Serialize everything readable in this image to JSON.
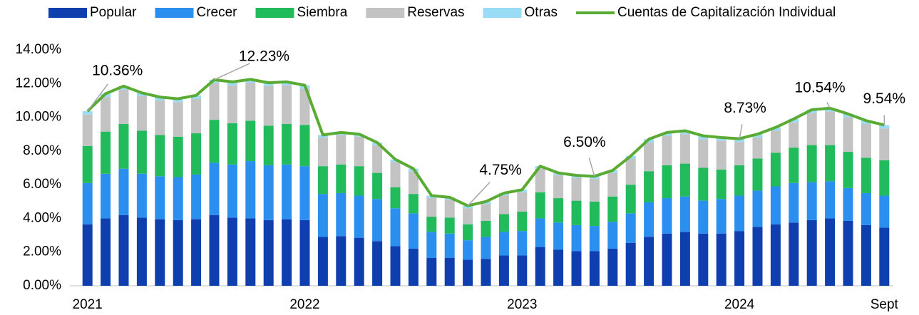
{
  "chart_data": {
    "type": "bar",
    "stacked": true,
    "categories": [
      "2021",
      null,
      null,
      null,
      null,
      null,
      null,
      null,
      null,
      null,
      null,
      null,
      "2022",
      null,
      null,
      null,
      null,
      null,
      null,
      null,
      null,
      null,
      null,
      null,
      "2023",
      null,
      null,
      null,
      null,
      null,
      null,
      null,
      null,
      null,
      null,
      null,
      "2024",
      null,
      null,
      null,
      null,
      null,
      null,
      null,
      "Sept"
    ],
    "ylim": [
      0,
      14
    ],
    "yticks": [
      {
        "value": 0,
        "label": "0.00%"
      },
      {
        "value": 2,
        "label": "2.00%"
      },
      {
        "value": 4,
        "label": "4.00%"
      },
      {
        "value": 6,
        "label": "6.00%"
      },
      {
        "value": 8,
        "label": "8.00%"
      },
      {
        "value": 10,
        "label": "10.00%"
      },
      {
        "value": 12,
        "label": "12.00%"
      },
      {
        "value": 14,
        "label": "14.00%"
      }
    ],
    "grid": false,
    "legend": "top",
    "series": [
      {
        "name": "Popular",
        "color": "#0f3fae",
        "values": [
          3.65,
          4.0,
          4.2,
          4.05,
          3.95,
          3.9,
          3.95,
          4.2,
          4.05,
          4.0,
          3.9,
          3.95,
          3.9,
          2.9,
          2.95,
          2.85,
          2.65,
          2.35,
          2.2,
          1.65,
          1.65,
          1.55,
          1.6,
          1.8,
          1.8,
          2.3,
          2.15,
          2.05,
          2.05,
          2.2,
          2.55,
          2.9,
          3.1,
          3.2,
          3.1,
          3.1,
          3.25,
          3.5,
          3.65,
          3.75,
          3.9,
          4.0,
          3.85,
          3.6,
          3.45
        ]
      },
      {
        "name": "Crecer",
        "color": "#2b8ff0",
        "values": [
          2.45,
          2.65,
          2.75,
          2.6,
          2.55,
          2.55,
          2.65,
          3.1,
          3.15,
          3.4,
          3.25,
          3.25,
          3.2,
          2.55,
          2.55,
          2.5,
          2.5,
          2.25,
          2.1,
          1.55,
          1.45,
          1.15,
          1.3,
          1.4,
          1.45,
          1.7,
          1.6,
          1.55,
          1.5,
          1.6,
          1.75,
          2.05,
          2.1,
          2.1,
          1.95,
          2.05,
          2.1,
          2.15,
          2.25,
          2.35,
          2.25,
          2.2,
          1.95,
          1.9,
          1.9
        ]
      },
      {
        "name": "Siembra",
        "color": "#22bb5c",
        "values": [
          2.2,
          2.5,
          2.65,
          2.55,
          2.45,
          2.4,
          2.45,
          2.55,
          2.45,
          2.4,
          2.35,
          2.4,
          2.45,
          1.65,
          1.7,
          1.75,
          1.55,
          1.25,
          1.15,
          0.9,
          0.95,
          0.95,
          0.95,
          1.05,
          1.15,
          1.55,
          1.45,
          1.45,
          1.45,
          1.5,
          1.7,
          1.85,
          1.95,
          1.95,
          1.95,
          1.75,
          1.8,
          1.9,
          2.0,
          2.1,
          2.2,
          2.15,
          2.15,
          2.1,
          2.1
        ]
      },
      {
        "name": "Reservas",
        "color": "#c3c3c3",
        "values": [
          1.86,
          2.05,
          2.05,
          2.05,
          2.05,
          2.05,
          2.05,
          2.18,
          2.25,
          2.25,
          2.35,
          2.3,
          2.15,
          1.7,
          1.75,
          1.75,
          1.65,
          1.5,
          1.35,
          1.1,
          1.05,
          0.95,
          1.0,
          1.1,
          1.15,
          1.4,
          1.35,
          1.35,
          1.35,
          1.4,
          1.55,
          1.7,
          1.75,
          1.75,
          1.7,
          1.7,
          1.38,
          1.25,
          1.3,
          1.5,
          1.9,
          1.99,
          2.05,
          2.0,
          1.89
        ]
      },
      {
        "name": "Otras",
        "color": "#9adcf6",
        "values": [
          0.2,
          0.2,
          0.2,
          0.2,
          0.2,
          0.2,
          0.2,
          0.2,
          0.2,
          0.2,
          0.2,
          0.2,
          0.2,
          0.15,
          0.15,
          0.15,
          0.15,
          0.15,
          0.15,
          0.15,
          0.15,
          0.15,
          0.15,
          0.15,
          0.15,
          0.15,
          0.15,
          0.15,
          0.15,
          0.15,
          0.15,
          0.2,
          0.2,
          0.2,
          0.2,
          0.2,
          0.2,
          0.2,
          0.2,
          0.2,
          0.2,
          0.2,
          0.2,
          0.2,
          0.2
        ]
      },
      {
        "name": "Cuentas de Capitalización Individual",
        "color": "#5aab33",
        "type": "line",
        "values": [
          10.36,
          11.4,
          11.85,
          11.45,
          11.2,
          11.1,
          11.3,
          12.23,
          12.1,
          12.25,
          12.05,
          12.1,
          11.9,
          8.95,
          9.1,
          9.0,
          8.5,
          7.5,
          6.95,
          5.35,
          5.25,
          4.75,
          5.0,
          5.5,
          5.7,
          7.1,
          6.7,
          6.55,
          6.5,
          6.85,
          7.7,
          8.7,
          9.1,
          9.2,
          8.9,
          8.8,
          8.73,
          9.0,
          9.4,
          9.9,
          10.45,
          10.54,
          10.2,
          9.8,
          9.54
        ],
        "value_labels": [
          "10.36%",
          null,
          null,
          null,
          null,
          null,
          null,
          "12.23%",
          null,
          null,
          null,
          null,
          null,
          null,
          null,
          null,
          null,
          null,
          null,
          null,
          null,
          "4.75%",
          null,
          null,
          null,
          null,
          null,
          null,
          "6.50%",
          null,
          null,
          null,
          null,
          null,
          null,
          null,
          "8.73%",
          null,
          null,
          null,
          null,
          "10.54%",
          null,
          null,
          "9.54%"
        ]
      }
    ]
  }
}
